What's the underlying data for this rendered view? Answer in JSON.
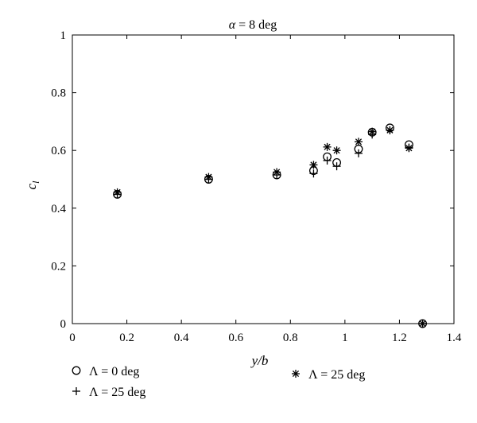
{
  "chart_data": {
    "type": "scatter",
    "title_prefix": "α",
    "title_rest": " = 8 deg",
    "xlabel": "y/b",
    "ylabel": "c",
    "ylabel_subscript": "l",
    "xlim": [
      0,
      1.4
    ],
    "ylim": [
      0,
      1
    ],
    "xticks": [
      0,
      0.2,
      0.4,
      0.6,
      0.8,
      1,
      1.2,
      1.4
    ],
    "yticks": [
      0,
      0.2,
      0.4,
      0.6,
      0.8,
      1
    ],
    "xtick_labels": [
      "0",
      "0.2",
      "0.4",
      "0.6",
      "0.8",
      "1",
      "1.2",
      "1.4"
    ],
    "ytick_labels": [
      "0",
      "0.2",
      "0.4",
      "0.6",
      "0.8",
      "1"
    ],
    "grid": false,
    "legend_position": "below-plot",
    "series": [
      {
        "name": "Λ = 0 deg",
        "marker": "circle",
        "x": [
          0.165,
          0.5,
          0.75,
          0.885,
          0.935,
          0.97,
          1.05,
          1.1,
          1.165,
          1.235,
          1.285
        ],
        "y": [
          0.448,
          0.5,
          0.515,
          0.53,
          0.578,
          0.558,
          0.605,
          0.663,
          0.678,
          0.62,
          0.0
        ]
      },
      {
        "name": "Λ = 25 deg",
        "marker": "plus",
        "x": [
          0.165,
          0.5,
          0.75,
          0.885,
          0.935,
          0.97,
          1.05,
          1.1,
          1.165,
          1.235,
          1.285
        ],
        "y": [
          0.448,
          0.5,
          0.515,
          0.52,
          0.565,
          0.545,
          0.59,
          0.655,
          0.67,
          0.61,
          0.0
        ]
      },
      {
        "name": "Λ = 25 deg",
        "marker": "asterisk",
        "x": [
          0.165,
          0.5,
          0.75,
          0.885,
          0.935,
          0.97,
          1.05,
          1.1,
          1.165,
          1.235,
          1.285
        ],
        "y": [
          0.455,
          0.508,
          0.525,
          0.55,
          0.612,
          0.6,
          0.63,
          0.665,
          0.67,
          0.608,
          0.0
        ]
      }
    ]
  }
}
